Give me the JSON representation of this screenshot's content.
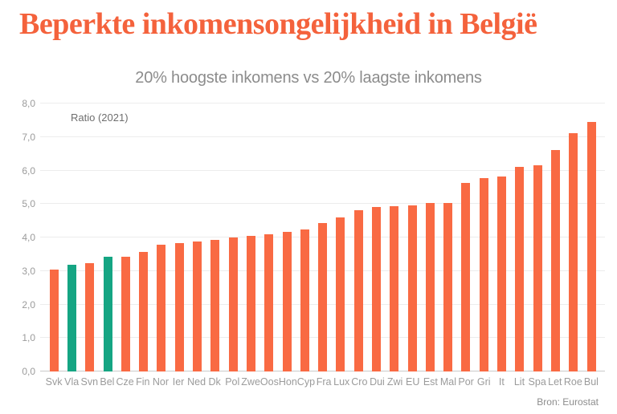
{
  "title": "Beperkte inkomensongelijkheid in België",
  "subtitle": "20% hoogste inkomens vs 20% laagste inkomens",
  "annotation": "Ratio (2021)",
  "source": "Bron: Eurostat",
  "colors": {
    "title": "#f4623c",
    "bar": "#f96a43",
    "highlight": "#15a583",
    "grid": "#ececec",
    "baseline": "#c9c9c9",
    "tick_label": "#9b9b9b",
    "subtitle": "#8c8c8c"
  },
  "chart_data": {
    "type": "bar",
    "title": "Beperkte inkomensongelijkheid in België",
    "subtitle": "20% hoogste inkomens vs 20% laagste inkomens",
    "ylabel": "Ratio (2021)",
    "source": "Bron: Eurostat",
    "ylim": [
      0,
      8
    ],
    "ytick_step": 1,
    "ytick_labels": [
      "0,0",
      "1,0",
      "2,0",
      "3,0",
      "4,0",
      "5,0",
      "6,0",
      "7,0",
      "8,0"
    ],
    "grid": true,
    "legend": false,
    "categories": [
      "Svk",
      "Vla",
      "Svn",
      "Bel",
      "Cze",
      "Fin",
      "Nor",
      "Ier",
      "Ned",
      "Dk",
      "Pol",
      "Zwe",
      "Oos",
      "Hon",
      "Cyp",
      "Fra",
      "Lux",
      "Cro",
      "Dui",
      "Zwi",
      "EU",
      "Est",
      "Mal",
      "Por",
      "Gri",
      "It",
      "Lit",
      "Spa",
      "Let",
      "Roe",
      "Bul"
    ],
    "values": [
      3.04,
      3.19,
      3.24,
      3.43,
      3.42,
      3.56,
      3.78,
      3.84,
      3.89,
      3.93,
      4.0,
      4.04,
      4.09,
      4.16,
      4.25,
      4.43,
      4.6,
      4.81,
      4.9,
      4.93,
      4.97,
      5.02,
      5.02,
      5.63,
      5.77,
      5.81,
      6.12,
      6.16,
      6.6,
      7.12,
      7.45
    ],
    "highlight_categories": [
      "Vla",
      "Bel"
    ]
  }
}
